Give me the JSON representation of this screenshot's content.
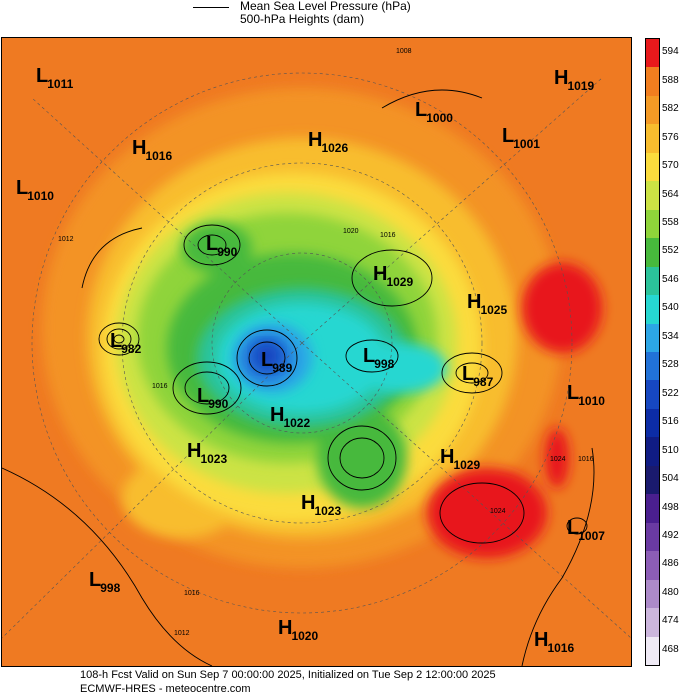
{
  "legend": {
    "mslp_label": "Mean Sea Level Pressure (hPa)",
    "heights_label": "500-hPa Heights (dam)"
  },
  "map": {
    "base_color": "#ef7a22",
    "pressure_systems": [
      {
        "type": "L",
        "value": "1011"
      },
      {
        "type": "H",
        "value": "1016"
      },
      {
        "type": "L",
        "value": "1010"
      },
      {
        "type": "H",
        "value": "1026"
      },
      {
        "type": "L",
        "value": "1000"
      },
      {
        "type": "L",
        "value": "1001"
      },
      {
        "type": "H",
        "value": "1019"
      },
      {
        "type": "L",
        "value": "990"
      },
      {
        "type": "H",
        "value": "1029"
      },
      {
        "type": "H",
        "value": "1025"
      },
      {
        "type": "L",
        "value": "982"
      },
      {
        "type": "L",
        "value": "989"
      },
      {
        "type": "L",
        "value": "998"
      },
      {
        "type": "L",
        "value": "987"
      },
      {
        "type": "L",
        "value": "990"
      },
      {
        "type": "H",
        "value": "1022"
      },
      {
        "type": "L",
        "value": "1010"
      },
      {
        "type": "H",
        "value": "1023"
      },
      {
        "type": "H",
        "value": "1029"
      },
      {
        "type": "H",
        "value": "1023"
      },
      {
        "type": "L",
        "value": "1007"
      },
      {
        "type": "L",
        "value": "998"
      },
      {
        "type": "H",
        "value": "1020"
      },
      {
        "type": "H",
        "value": "1016"
      }
    ],
    "isobar_labels": [
      "1008",
      "1020",
      "1016",
      "1012",
      "1024",
      "1016",
      "1016",
      "1016",
      "1012",
      "1024"
    ]
  },
  "colorbar": {
    "levels": [
      "594",
      "588",
      "582",
      "576",
      "570",
      "564",
      "558",
      "552",
      "546",
      "540",
      "534",
      "528",
      "522",
      "516",
      "510",
      "504",
      "498",
      "492",
      "486",
      "480",
      "474",
      "468"
    ],
    "colors": [
      "#e8191c",
      "#f17e1f",
      "#f49a25",
      "#f8bd2e",
      "#fbdc3d",
      "#cce344",
      "#8fd43a",
      "#47b93c",
      "#2bc39a",
      "#26d7d1",
      "#2ca6e6",
      "#2172d8",
      "#1647c1",
      "#0c2ca6",
      "#101c84",
      "#1a1a6e",
      "#4a1f8f",
      "#6a3aa2",
      "#8c5db6",
      "#ac8ac9",
      "#ccb6dd",
      "#efeaf5"
    ]
  },
  "footer": {
    "line1": "108-h Fcst Valid on Sun Sep  7 00:00:00 2025, Initialized on Tue Sep  2 12:00:00 2025",
    "line2": "ECMWF-HRES  - meteocentre.com"
  }
}
